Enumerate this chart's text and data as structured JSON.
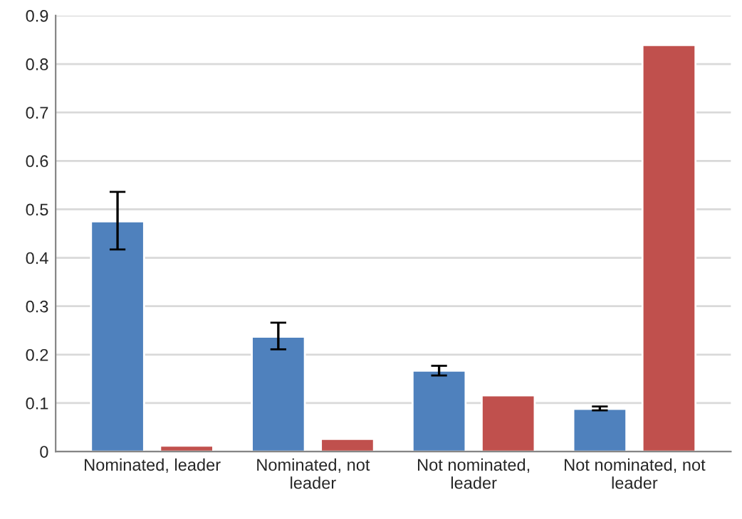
{
  "chart_data": {
    "type": "bar",
    "categories": [
      "Nominated, leader",
      "Nominated, not\nleader",
      "Not nominated,\nleader",
      "Not nominated, not\nleader"
    ],
    "series": [
      {
        "color": "#4f81bd",
        "values": [
          0.475,
          0.237,
          0.167,
          0.088
        ],
        "errors": [
          [
            0.417,
            0.536
          ],
          [
            0.211,
            0.266
          ],
          [
            0.157,
            0.177
          ],
          [
            0.085,
            0.093
          ]
        ]
      },
      {
        "color": "#c0504d",
        "values": [
          0.012,
          0.026,
          0.116,
          0.839
        ]
      }
    ],
    "ylim": [
      0,
      0.9
    ],
    "yticks": [
      0,
      0.1,
      0.2,
      0.3,
      0.4,
      0.5,
      0.6,
      0.7,
      0.8,
      0.9
    ],
    "grid": "y",
    "legend": false
  }
}
